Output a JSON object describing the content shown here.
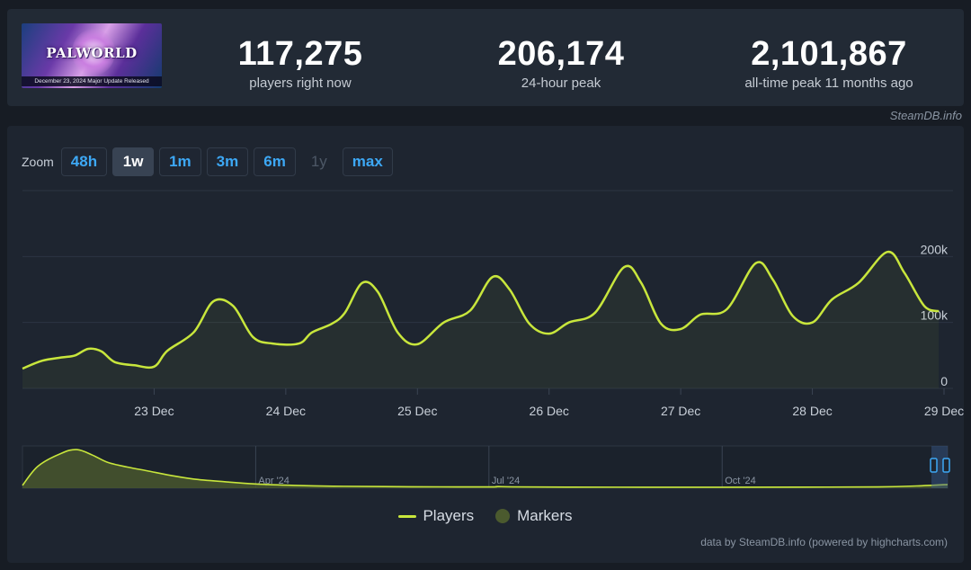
{
  "header": {
    "banner": {
      "logo_text": "PALWORLD",
      "caption": "December 23, 2024 Major Update Released"
    },
    "stats": [
      {
        "value": "117,275",
        "label": "players right now"
      },
      {
        "value": "206,174",
        "label": "24-hour peak"
      },
      {
        "value": "2,101,867",
        "label": "all-time peak 11 months ago"
      }
    ],
    "credit": "SteamDB.info"
  },
  "zoom": {
    "label": "Zoom",
    "buttons": [
      {
        "label": "48h",
        "state": "normal"
      },
      {
        "label": "1w",
        "state": "active"
      },
      {
        "label": "1m",
        "state": "normal"
      },
      {
        "label": "3m",
        "state": "normal"
      },
      {
        "label": "6m",
        "state": "normal"
      },
      {
        "label": "1y",
        "state": "disabled"
      },
      {
        "label": "max",
        "state": "normal"
      }
    ]
  },
  "legend": {
    "players": "Players",
    "markers": "Markers"
  },
  "footer_credit": "data by SteamDB.info (powered by highcharts.com)",
  "colors": {
    "line": "#c8e63c",
    "marker": "#4b5a2e",
    "accent": "#3da8f5",
    "grid": "#2c3542"
  },
  "chart_data": {
    "type": "line",
    "series": [
      {
        "name": "Players",
        "points": [
          [
            22.0,
            30000
          ],
          [
            22.15,
            42000
          ],
          [
            22.3,
            47000
          ],
          [
            22.4,
            50000
          ],
          [
            22.5,
            60000
          ],
          [
            22.6,
            56000
          ],
          [
            22.7,
            40000
          ],
          [
            22.85,
            35000
          ],
          [
            23.0,
            33000
          ],
          [
            23.1,
            57000
          ],
          [
            23.3,
            85000
          ],
          [
            23.45,
            132000
          ],
          [
            23.6,
            125000
          ],
          [
            23.75,
            78000
          ],
          [
            23.9,
            68000
          ],
          [
            24.1,
            68000
          ],
          [
            24.2,
            85000
          ],
          [
            24.35,
            98000
          ],
          [
            24.45,
            115000
          ],
          [
            24.58,
            160000
          ],
          [
            24.7,
            146000
          ],
          [
            24.85,
            85000
          ],
          [
            25.0,
            67000
          ],
          [
            25.2,
            100000
          ],
          [
            25.4,
            118000
          ],
          [
            25.57,
            169000
          ],
          [
            25.7,
            150000
          ],
          [
            25.85,
            98000
          ],
          [
            26.0,
            83000
          ],
          [
            26.15,
            100000
          ],
          [
            26.35,
            115000
          ],
          [
            26.57,
            184000
          ],
          [
            26.7,
            160000
          ],
          [
            26.85,
            98000
          ],
          [
            27.0,
            90000
          ],
          [
            27.15,
            112000
          ],
          [
            27.35,
            120000
          ],
          [
            27.57,
            190000
          ],
          [
            27.7,
            165000
          ],
          [
            27.85,
            110000
          ],
          [
            28.0,
            100000
          ],
          [
            28.15,
            135000
          ],
          [
            28.35,
            160000
          ],
          [
            28.57,
            207000
          ],
          [
            28.7,
            175000
          ],
          [
            28.85,
            125000
          ],
          [
            28.96,
            117000
          ]
        ]
      }
    ],
    "x_tick_labels": [
      "23 Dec",
      "24 Dec",
      "25 Dec",
      "26 Dec",
      "27 Dec",
      "28 Dec",
      "29 Dec"
    ],
    "x_ticks": [
      23,
      24,
      25,
      26,
      27,
      28,
      29
    ],
    "x_range": [
      22.0,
      29.0
    ],
    "y_tick_labels": [
      "0",
      "100k",
      "200k"
    ],
    "y_ticks": [
      0,
      100000,
      200000
    ],
    "y_range": [
      0,
      300000
    ],
    "grid": true,
    "navigator": {
      "labels": [
        "Apr '24",
        "Jul '24",
        "Oct '24"
      ],
      "label_months": [
        3,
        6,
        9
      ],
      "x_range": [
        0,
        11.9
      ],
      "points": [
        [
          0.0,
          150000
        ],
        [
          0.2,
          1200000
        ],
        [
          0.5,
          1900000
        ],
        [
          0.7,
          2100000
        ],
        [
          0.9,
          1800000
        ],
        [
          1.1,
          1400000
        ],
        [
          1.35,
          1150000
        ],
        [
          1.6,
          950000
        ],
        [
          1.9,
          700000
        ],
        [
          2.2,
          500000
        ],
        [
          2.6,
          350000
        ],
        [
          3.0,
          230000
        ],
        [
          3.5,
          150000
        ],
        [
          4.0,
          110000
        ],
        [
          5.0,
          80000
        ],
        [
          6.0,
          70000
        ],
        [
          6.1,
          90000
        ],
        [
          6.3,
          75000
        ],
        [
          7.0,
          60000
        ],
        [
          8.0,
          55000
        ],
        [
          9.0,
          55000
        ],
        [
          10.0,
          60000
        ],
        [
          11.0,
          70000
        ],
        [
          11.5,
          120000
        ],
        [
          11.9,
          200000
        ]
      ],
      "y_range": [
        0,
        2300000
      ]
    }
  }
}
